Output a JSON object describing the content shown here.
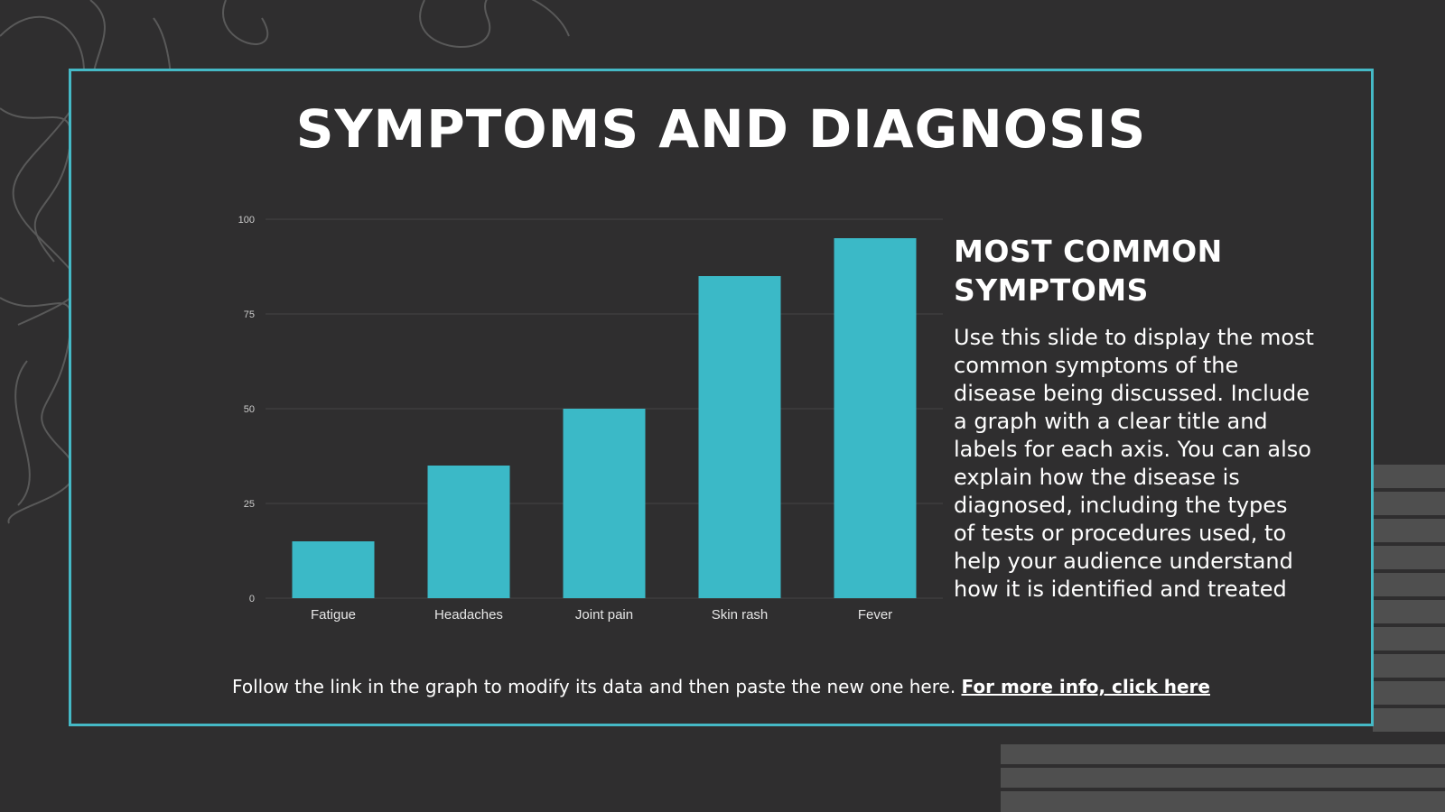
{
  "slide": {
    "title": "SYMPTOMS AND DIAGNOSIS",
    "side_heading": "MOST COMMON SYMPTOMS",
    "side_body": "Use this slide to display the most common symptoms of the disease being discussed. Include a graph with a clear title and labels for each axis. You can also explain how the disease is diagnosed, including the types of tests or procedures used, to help your audience understand how it is identified and treated",
    "footer_text": "Follow the link in the graph to modify its data and then paste the new one here.",
    "footer_link": "For more info, click here"
  },
  "colors": {
    "background": "#2f2e2f",
    "accent": "#45b9c6",
    "bar": "#3bb9c7",
    "text": "#ffffff",
    "gridline": "#444444",
    "tick_label": "#cccccc",
    "decor_stripes": "#4f4f4f",
    "decor_scribble": "#595959"
  },
  "chart_data": {
    "type": "bar",
    "categories": [
      "Fatigue",
      "Headaches",
      "Joint pain",
      "Skin rash",
      "Fever"
    ],
    "values": [
      15,
      35,
      50,
      85,
      95
    ],
    "title": "",
    "xlabel": "",
    "ylabel": "",
    "ylim": [
      0,
      100
    ],
    "yticks": [
      0,
      25,
      50,
      75,
      100
    ],
    "grid": true,
    "legend": "none"
  }
}
